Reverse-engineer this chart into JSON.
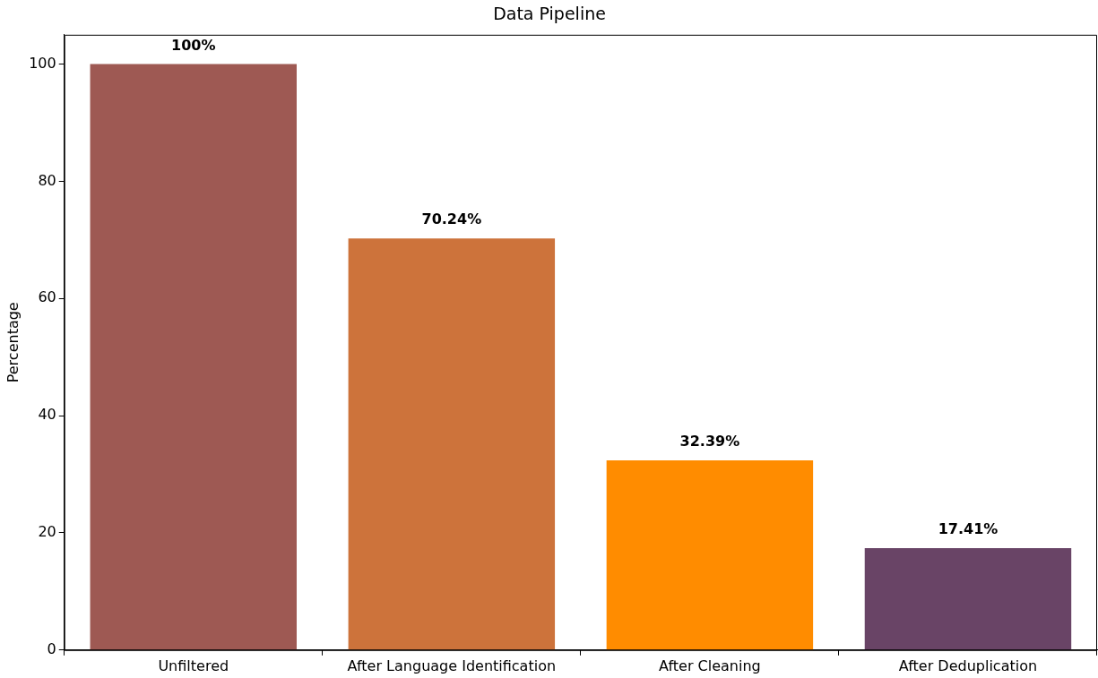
{
  "chart_data": {
    "type": "bar",
    "title": "Data Pipeline",
    "ylabel": "Percentage",
    "categories": [
      "Unfiltered",
      "After Language Identification",
      "After Cleaning",
      "After Deduplication"
    ],
    "values": [
      100,
      70.24,
      32.39,
      17.41
    ],
    "colors": [
      "#9e5953",
      "#cd733b",
      "#ff8c00",
      "#694466"
    ],
    "value_labels": [
      "100%",
      "70.24%",
      "32.39%",
      "17.41%"
    ],
    "ylim": [
      0,
      105
    ],
    "yticks": [
      0,
      20,
      40,
      60,
      80,
      100
    ],
    "grid": false,
    "legend": false
  }
}
